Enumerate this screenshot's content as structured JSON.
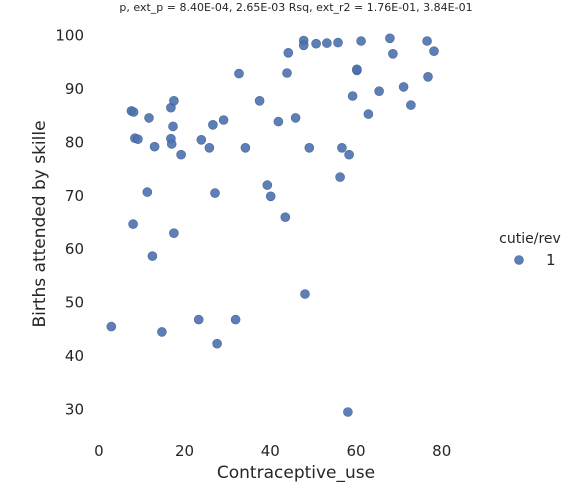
{
  "chart_data": {
    "type": "scatter",
    "title": "p, ext_p = 8.40E-04, 2.65E-03 Rsq, ext_r2 = 1.76E-01, 3.84E-01",
    "xlabel": "Contraceptive_use",
    "ylabel": "Births attended by skille",
    "xlim": [
      -3,
      95
    ],
    "ylim": [
      25,
      102
    ],
    "xticks": [
      0,
      20,
      40,
      60,
      80
    ],
    "yticks": [
      30,
      40,
      50,
      60,
      70,
      80,
      90,
      100
    ],
    "grid": false,
    "legend": {
      "title": "cutie/rev",
      "position": "right",
      "entries": [
        "1"
      ]
    },
    "series": [
      {
        "name": "1",
        "color": "#4c72b0",
        "points": [
          [
            2.9,
            45.5
          ],
          [
            7.6,
            85.9
          ],
          [
            8.1,
            85.7
          ],
          [
            8.0,
            64.7
          ],
          [
            8.4,
            80.8
          ],
          [
            9.1,
            80.6
          ],
          [
            11.3,
            70.7
          ],
          [
            11.7,
            84.6
          ],
          [
            12.5,
            58.7
          ],
          [
            13.0,
            79.2
          ],
          [
            14.7,
            44.5
          ],
          [
            16.8,
            80.7
          ],
          [
            16.8,
            86.5
          ],
          [
            17.0,
            79.7
          ],
          [
            17.3,
            83.0
          ],
          [
            17.5,
            87.8
          ],
          [
            17.5,
            63.0
          ],
          [
            19.2,
            77.7
          ],
          [
            23.3,
            46.8
          ],
          [
            23.9,
            80.5
          ],
          [
            25.8,
            79.0
          ],
          [
            26.6,
            83.3
          ],
          [
            27.1,
            70.5
          ],
          [
            27.6,
            42.3
          ],
          [
            29.1,
            84.2
          ],
          [
            31.9,
            46.8
          ],
          [
            32.7,
            92.9
          ],
          [
            34.2,
            79.0
          ],
          [
            37.5,
            87.8
          ],
          [
            39.3,
            72.0
          ],
          [
            40.1,
            69.9
          ],
          [
            41.9,
            83.9
          ],
          [
            43.5,
            66.0
          ],
          [
            43.9,
            93.0
          ],
          [
            44.2,
            96.8
          ],
          [
            45.9,
            84.6
          ],
          [
            47.8,
            99.1
          ],
          [
            47.8,
            98.2
          ],
          [
            48.1,
            51.6
          ],
          [
            49.1,
            79.0
          ],
          [
            50.7,
            98.5
          ],
          [
            53.2,
            98.6
          ],
          [
            55.8,
            98.7
          ],
          [
            56.3,
            73.5
          ],
          [
            56.7,
            79.0
          ],
          [
            58.1,
            29.5
          ],
          [
            58.4,
            77.7
          ],
          [
            59.2,
            88.7
          ],
          [
            60.2,
            93.5
          ],
          [
            60.2,
            93.7
          ],
          [
            61.2,
            99.0
          ],
          [
            62.9,
            85.3
          ],
          [
            65.4,
            89.6
          ],
          [
            67.9,
            99.5
          ],
          [
            68.6,
            96.6
          ],
          [
            71.1,
            90.4
          ],
          [
            72.8,
            87.0
          ],
          [
            76.6,
            99.0
          ],
          [
            76.8,
            92.3
          ],
          [
            78.2,
            97.1
          ]
        ]
      }
    ]
  }
}
